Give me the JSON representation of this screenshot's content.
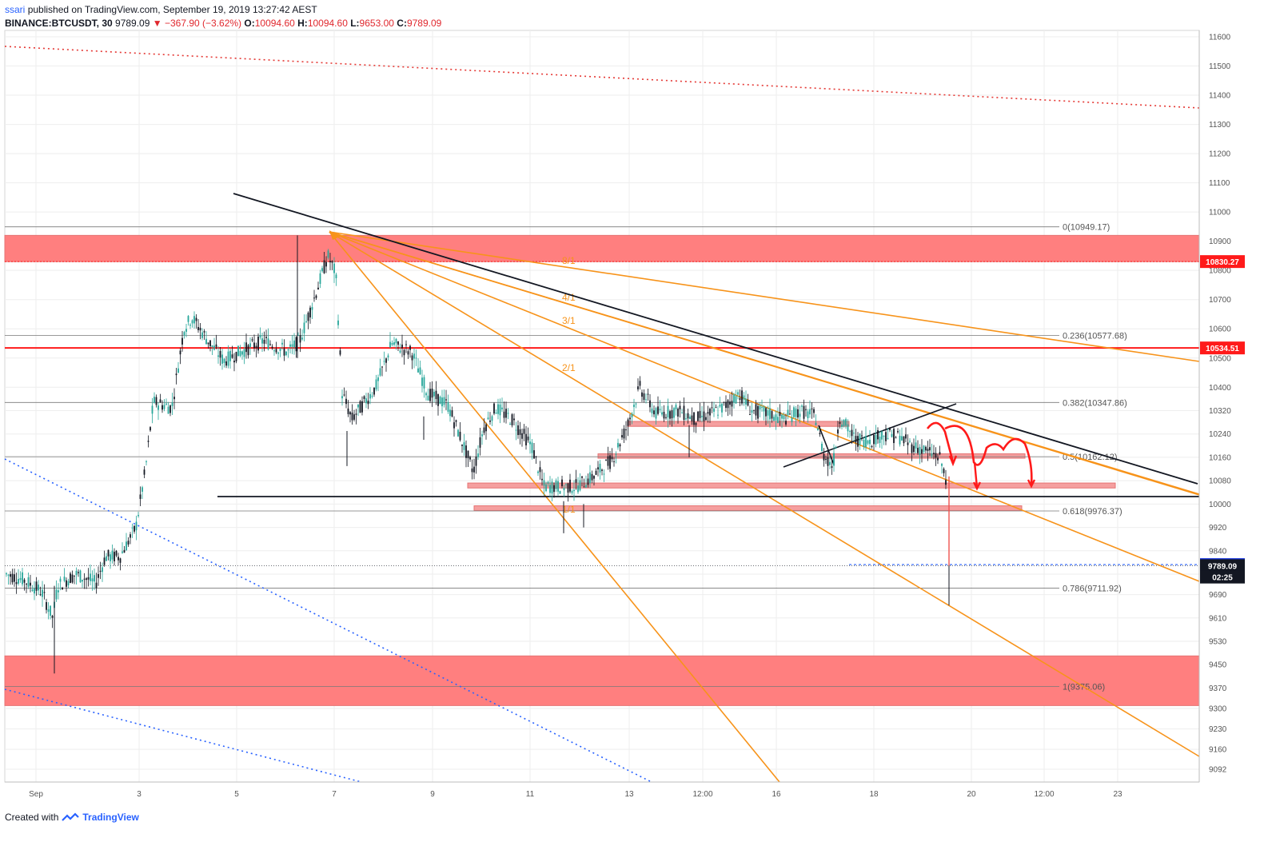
{
  "header": {
    "user": "ssari",
    "published": "published on TradingView.com, September 19, 2019 13:27:42 AEST",
    "symbol": "BINANCE:BTCUSDT, 30",
    "last": "9789.09",
    "change": "▼ −367.90 (−3.62%)",
    "o_label": "O:",
    "o": "10094.60",
    "h_label": "H:",
    "h": "10094.60",
    "l_label": "L:",
    "l": "9653.00",
    "c_label": "C:",
    "c": "9789.09"
  },
  "footer": {
    "created": "Created with",
    "brand": "TradingView"
  },
  "colors": {
    "zone": "#ff7f7f",
    "resistance": "#ff1a1a",
    "fan": "#f7931a",
    "trend": "#131722",
    "dotted_blue": "#2962ff",
    "dotted_red": "#e53935",
    "candle_up": "#26a69a",
    "candle_down": "#131722",
    "path": "#ff1a1a"
  },
  "chart_data": {
    "type": "candlestick",
    "x_ticks": [
      "Sep",
      "3",
      "5",
      "7",
      "9",
      "11",
      "13",
      "12:00",
      "16",
      "18",
      "20",
      "12:00",
      "23"
    ],
    "y_ticks": [
      11600,
      11500,
      11400,
      11300,
      11200,
      11100,
      11000,
      10900,
      10800,
      10700,
      10600,
      10500,
      10400,
      10320,
      10240,
      10160,
      10080,
      10000,
      9920,
      9840,
      9760,
      9690,
      9610,
      9530,
      9450,
      9370,
      9300,
      9230,
      9160,
      9092
    ],
    "ylim": [
      9050,
      11620
    ],
    "fib_levels": [
      {
        "label": "0(10949.17)",
        "price": 10949.17
      },
      {
        "label": "0.236(10577.68)",
        "price": 10577.68
      },
      {
        "label": "0.382(10347.86)",
        "price": 10347.86
      },
      {
        "label": "0.5(10162.12)",
        "price": 10162.12
      },
      {
        "label": "0.618(9976.37)",
        "price": 9976.37
      },
      {
        "label": "0.786(9711.92)",
        "price": 9711.92
      },
      {
        "label": "1(9375.06)",
        "price": 9375.06
      }
    ],
    "price_tags": [
      {
        "label": "10830.27",
        "price": 10830.27,
        "kind": "red"
      },
      {
        "label": "10534.51",
        "price": 10534.51,
        "kind": "red"
      },
      {
        "label": "9792.69",
        "price": 9792.69,
        "kind": "blue"
      },
      {
        "label": "9789.09",
        "price": 9789.09,
        "kind": "black"
      },
      {
        "label": "02:25",
        "price": 9750,
        "kind": "black"
      }
    ],
    "fan_labels": [
      "8/1",
      "4/1",
      "3/1",
      "2/1",
      "1/1"
    ],
    "zones": [
      {
        "top": 10920,
        "bottom": 10830
      },
      {
        "top": 9480,
        "bottom": 9310
      }
    ],
    "last_price": 9789.09
  }
}
